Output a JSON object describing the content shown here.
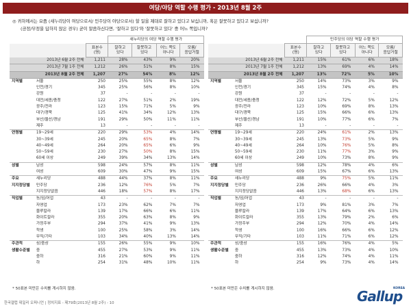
{
  "title": "여당/야당 역할 수행 평가 - 2013년 8월 2주",
  "question_main": "◎  귀하께서는 요즘 (새누리당이 여당으로서/ 민주당이 야당으로서) 할 일을 제대로 잘하고 있다고 보십니까, 혹은 잘못하고 있다고 보십니까?",
  "question_sub": "(긍정/부정을 답하지 않은 경우) 굳이 말씀하신다면, '잘하고 있다'와 '잘못하고 있다' 중 어느 쪽입니까?",
  "left": {
    "header": "새누리당의 여당 역할 수행 평가",
    "cols": [
      "표본수\n(명)",
      "잘하고\n있다",
      "잘못하고\n있다",
      "어느 쪽도\n아니다",
      "모름/\n응답거절"
    ],
    "summary": [
      {
        "label": "2013년 6월 2주 전체",
        "n": "1,211",
        "v": [
          "28%",
          "43%",
          "9%",
          "20%"
        ]
      },
      {
        "label": "2013년 7월 1주 전체",
        "n": "1,212",
        "v": [
          "26%",
          "51%",
          "8%",
          "15%"
        ]
      },
      {
        "label": "2013년 8월 2주 전체",
        "n": "1,207",
        "v": [
          "27%",
          "54%",
          "8%",
          "12%"
        ]
      }
    ],
    "rows": [
      {
        "g": "지역별",
        "s": "서울",
        "n": "250",
        "v": [
          "25%",
          "55%",
          "8%",
          "12%"
        ],
        "hl": [
          false,
          false,
          false,
          false
        ]
      },
      {
        "g": "",
        "s": "인천/경기",
        "n": "345",
        "v": [
          "25%",
          "56%",
          "8%",
          "10%"
        ],
        "hl": [
          false,
          false,
          false,
          false
        ]
      },
      {
        "g": "",
        "s": "강원",
        "n": "37",
        "v": [
          "-",
          "-",
          "-",
          "-"
        ],
        "hl": [
          false,
          false,
          false,
          false
        ]
      },
      {
        "g": "",
        "s": "대전/세종/충청",
        "n": "122",
        "v": [
          "27%",
          "51%",
          "2%",
          "19%"
        ],
        "hl": [
          false,
          false,
          false,
          false
        ]
      },
      {
        "g": "",
        "s": "광주/전라",
        "n": "123",
        "v": [
          "15%",
          "71%",
          "5%",
          "9%"
        ],
        "hl": [
          false,
          false,
          false,
          false
        ]
      },
      {
        "g": "",
        "s": "대구/경북",
        "n": "125",
        "v": [
          "41%",
          "34%",
          "12%",
          "13%"
        ],
        "hl": [
          false,
          false,
          false,
          false
        ]
      },
      {
        "g": "",
        "s": "부산/울산/경남",
        "n": "191",
        "v": [
          "29%",
          "50%",
          "11%",
          "11%"
        ],
        "hl": [
          false,
          false,
          false,
          false
        ]
      },
      {
        "g": "",
        "s": "제주",
        "n": "13",
        "v": [
          "-",
          "-",
          "-",
          "-"
        ],
        "hl": [
          false,
          false,
          false,
          false
        ]
      },
      {
        "g": "연령별",
        "s": "19~29세",
        "n": "220",
        "v": [
          "29%",
          "53%",
          "4%",
          "14%"
        ],
        "hl": [
          false,
          true,
          false,
          false
        ],
        "gs": true
      },
      {
        "g": "",
        "s": "30~39세",
        "n": "245",
        "v": [
          "20%",
          "65%",
          "8%",
          "7%"
        ],
        "hl": [
          false,
          true,
          false,
          false
        ]
      },
      {
        "g": "",
        "s": "40~49세",
        "n": "264",
        "v": [
          "20%",
          "65%",
          "6%",
          "9%"
        ],
        "hl": [
          false,
          true,
          false,
          false
        ]
      },
      {
        "g": "",
        "s": "50~59세",
        "n": "230",
        "v": [
          "27%",
          "50%",
          "8%",
          "15%"
        ],
        "hl": [
          false,
          true,
          false,
          false
        ]
      },
      {
        "g": "",
        "s": "60세 이상",
        "n": "249",
        "v": [
          "39%",
          "34%",
          "13%",
          "14%"
        ],
        "hl": [
          false,
          false,
          false,
          false
        ]
      },
      {
        "g": "성별",
        "s": "남성",
        "n": "598",
        "v": [
          "24%",
          "57%",
          "8%",
          "11%"
        ],
        "hl": [
          false,
          false,
          false,
          false
        ],
        "gs": true
      },
      {
        "g": "",
        "s": "여성",
        "n": "609",
        "v": [
          "30%",
          "47%",
          "9%",
          "15%"
        ],
        "hl": [
          false,
          false,
          false,
          false
        ]
      },
      {
        "g": "주요",
        "s": "새누리당",
        "n": "488",
        "v": [
          "44%",
          "37%",
          "8%",
          "11%"
        ],
        "hl": [
          false,
          false,
          false,
          false
        ],
        "gs": true
      },
      {
        "g": "지지정당별",
        "s": "민주당",
        "n": "236",
        "v": [
          "12%",
          "76%",
          "5%",
          "7%"
        ],
        "hl": [
          false,
          true,
          false,
          false
        ]
      },
      {
        "g": "",
        "s": "지지정당없음",
        "n": "446",
        "v": [
          "18%",
          "57%",
          "8%",
          "17%"
        ],
        "hl": [
          false,
          true,
          false,
          false
        ]
      },
      {
        "g": "직업별",
        "s": "농/임/어업",
        "n": "43",
        "v": [
          "-",
          "-",
          "-",
          "-"
        ],
        "hl": [
          false,
          false,
          false,
          false
        ],
        "gs": true
      },
      {
        "g": "",
        "s": "자영업",
        "n": "173",
        "v": [
          "23%",
          "62%",
          "7%",
          "7%"
        ],
        "hl": [
          false,
          false,
          false,
          false
        ]
      },
      {
        "g": "",
        "s": "블루칼라",
        "n": "139",
        "v": [
          "17%",
          "66%",
          "6%",
          "11%"
        ],
        "hl": [
          false,
          false,
          false,
          false
        ]
      },
      {
        "g": "",
        "s": "화이트칼라",
        "n": "355",
        "v": [
          "20%",
          "63%",
          "8%",
          "9%"
        ],
        "hl": [
          false,
          false,
          false,
          false
        ]
      },
      {
        "g": "",
        "s": "가정주부",
        "n": "294",
        "v": [
          "37%",
          "41%",
          "9%",
          "13%"
        ],
        "hl": [
          false,
          false,
          false,
          false
        ]
      },
      {
        "g": "",
        "s": "학생",
        "n": "100",
        "v": [
          "25%",
          "58%",
          "3%",
          "14%"
        ],
        "hl": [
          false,
          false,
          false,
          false
        ]
      },
      {
        "g": "",
        "s": "무직/기타",
        "n": "103",
        "v": [
          "34%",
          "40%",
          "13%",
          "14%"
        ],
        "hl": [
          false,
          false,
          false,
          false
        ]
      },
      {
        "g": "주관적",
        "s": "상/중상",
        "n": "155",
        "v": [
          "26%",
          "55%",
          "9%",
          "10%"
        ],
        "hl": [
          false,
          false,
          false,
          false
        ],
        "gs": true
      },
      {
        "g": "생활수준별",
        "s": "중",
        "n": "455",
        "v": [
          "27%",
          "53%",
          "9%",
          "11%"
        ],
        "hl": [
          false,
          false,
          false,
          false
        ]
      },
      {
        "g": "",
        "s": "중하",
        "n": "316",
        "v": [
          "21%",
          "60%",
          "9%",
          "11%"
        ],
        "hl": [
          false,
          false,
          false,
          false
        ]
      },
      {
        "g": "",
        "s": "하",
        "n": "254",
        "v": [
          "31%",
          "48%",
          "10%",
          "11%"
        ],
        "hl": [
          false,
          false,
          false,
          false
        ]
      }
    ]
  },
  "right": {
    "header": "민주당의 야당 역할 수행 평가",
    "cols": [
      "표본수\n(명)",
      "잘하고\n있다",
      "잘못하고\n있다",
      "어느 쪽도\n아니다",
      "모름/\n응답거절"
    ],
    "summary": [
      {
        "label": "2013년 6월 2주 전체",
        "n": "1,211",
        "v": [
          "15%",
          "61%",
          "6%",
          "18%"
        ]
      },
      {
        "label": "2013년 7월 1주 전체",
        "n": "1,212",
        "v": [
          "13%",
          "69%",
          "4%",
          "14%"
        ]
      },
      {
        "label": "2013년 8월 2주 전체",
        "n": "1,207",
        "v": [
          "13%",
          "72%",
          "5%",
          "10%"
        ]
      }
    ],
    "rows": [
      {
        "g": "지역별",
        "s": "서울",
        "n": "250",
        "v": [
          "14%",
          "73%",
          "3%",
          "9%"
        ],
        "hl": [
          false,
          false,
          false,
          false
        ]
      },
      {
        "g": "",
        "s": "인천/경기",
        "n": "345",
        "v": [
          "15%",
          "74%",
          "4%",
          "8%"
        ],
        "hl": [
          false,
          false,
          false,
          false
        ]
      },
      {
        "g": "",
        "s": "강원",
        "n": "37",
        "v": [
          "-",
          "-",
          "-",
          "-"
        ],
        "hl": [
          false,
          false,
          false,
          false
        ]
      },
      {
        "g": "",
        "s": "대전/세종/충청",
        "n": "122",
        "v": [
          "12%",
          "72%",
          "5%",
          "12%"
        ],
        "hl": [
          false,
          false,
          false,
          false
        ]
      },
      {
        "g": "",
        "s": "광주/전라",
        "n": "123",
        "v": [
          "10%",
          "69%",
          "8%",
          "13%"
        ],
        "hl": [
          false,
          false,
          false,
          false
        ]
      },
      {
        "g": "",
        "s": "대구/경북",
        "n": "125",
        "v": [
          "15%",
          "66%",
          "6%",
          "13%"
        ],
        "hl": [
          false,
          false,
          false,
          false
        ]
      },
      {
        "g": "",
        "s": "부산/울산/경남",
        "n": "191",
        "v": [
          "10%",
          "77%",
          "6%",
          "7%"
        ],
        "hl": [
          false,
          false,
          false,
          false
        ]
      },
      {
        "g": "",
        "s": "제주",
        "n": "13",
        "v": [
          "-",
          "-",
          "-",
          "-"
        ],
        "hl": [
          false,
          false,
          false,
          false
        ]
      },
      {
        "g": "연령별",
        "s": "19~29세",
        "n": "220",
        "v": [
          "24%",
          "61%",
          "2%",
          "13%"
        ],
        "hl": [
          false,
          true,
          false,
          false
        ],
        "gs": true
      },
      {
        "g": "",
        "s": "30~39세",
        "n": "245",
        "v": [
          "13%",
          "73%",
          "5%",
          "9%"
        ],
        "hl": [
          false,
          true,
          false,
          false
        ]
      },
      {
        "g": "",
        "s": "40~49세",
        "n": "264",
        "v": [
          "10%",
          "76%",
          "5%",
          "8%"
        ],
        "hl": [
          false,
          true,
          false,
          false
        ]
      },
      {
        "g": "",
        "s": "50~59세",
        "n": "230",
        "v": [
          "11%",
          "77%",
          "3%",
          "9%"
        ],
        "hl": [
          false,
          true,
          false,
          false
        ]
      },
      {
        "g": "",
        "s": "60세 이상",
        "n": "249",
        "v": [
          "10%",
          "73%",
          "8%",
          "9%"
        ],
        "hl": [
          false,
          false,
          false,
          false
        ]
      },
      {
        "g": "성별",
        "s": "남성",
        "n": "598",
        "v": [
          "12%",
          "78%",
          "4%",
          "6%"
        ],
        "hl": [
          false,
          false,
          false,
          false
        ],
        "gs": true
      },
      {
        "g": "",
        "s": "여성",
        "n": "609",
        "v": [
          "15%",
          "67%",
          "6%",
          "13%"
        ],
        "hl": [
          false,
          false,
          false,
          false
        ]
      },
      {
        "g": "주요",
        "s": "새누리당",
        "n": "488",
        "v": [
          "9%",
          "75%",
          "5%",
          "11%"
        ],
        "hl": [
          false,
          true,
          false,
          false
        ],
        "gs": true
      },
      {
        "g": "지지정당별",
        "s": "민주당",
        "n": "236",
        "v": [
          "26%",
          "66%",
          "4%",
          "3%"
        ],
        "hl": [
          false,
          false,
          false,
          false
        ]
      },
      {
        "g": "",
        "s": "지지정당없음",
        "n": "446",
        "v": [
          "13%",
          "68%",
          "6%",
          "13%"
        ],
        "hl": [
          false,
          true,
          false,
          false
        ]
      },
      {
        "g": "직업별",
        "s": "농/임/어업",
        "n": "43",
        "v": [
          "-",
          "-",
          "-",
          "-"
        ],
        "hl": [
          false,
          false,
          false,
          false
        ],
        "gs": true
      },
      {
        "g": "",
        "s": "자영업",
        "n": "173",
        "v": [
          "9%",
          "81%",
          "3%",
          "7%"
        ],
        "hl": [
          false,
          false,
          false,
          false
        ]
      },
      {
        "g": "",
        "s": "블루칼라",
        "n": "139",
        "v": [
          "17%",
          "64%",
          "6%",
          "13%"
        ],
        "hl": [
          false,
          false,
          false,
          false
        ]
      },
      {
        "g": "",
        "s": "화이트칼라",
        "n": "355",
        "v": [
          "13%",
          "79%",
          "2%",
          "6%"
        ],
        "hl": [
          false,
          false,
          false,
          false
        ]
      },
      {
        "g": "",
        "s": "가정주부",
        "n": "294",
        "v": [
          "12%",
          "70%",
          "4%",
          "14%"
        ],
        "hl": [
          false,
          false,
          false,
          false
        ]
      },
      {
        "g": "",
        "s": "학생",
        "n": "100",
        "v": [
          "16%",
          "66%",
          "6%",
          "12%"
        ],
        "hl": [
          false,
          false,
          false,
          false
        ]
      },
      {
        "g": "",
        "s": "무직/기타",
        "n": "103",
        "v": [
          "11%",
          "71%",
          "6%",
          "12%"
        ],
        "hl": [
          false,
          false,
          false,
          false
        ]
      },
      {
        "g": "주관적",
        "s": "상/중상",
        "n": "155",
        "v": [
          "16%",
          "76%",
          "4%",
          "5%"
        ],
        "hl": [
          false,
          false,
          false,
          false
        ],
        "gs": true
      },
      {
        "g": "생활수준별",
        "s": "중",
        "n": "455",
        "v": [
          "13%",
          "73%",
          "4%",
          "10%"
        ],
        "hl": [
          false,
          false,
          false,
          false
        ]
      },
      {
        "g": "",
        "s": "중하",
        "n": "316",
        "v": [
          "12%",
          "74%",
          "4%",
          "11%"
        ],
        "hl": [
          false,
          false,
          false,
          false
        ]
      },
      {
        "g": "",
        "s": "하",
        "n": "254",
        "v": [
          "9%",
          "73%",
          "4%",
          "14%"
        ],
        "hl": [
          false,
          false,
          false,
          false
        ]
      }
    ]
  },
  "note": "* 50표본 미만은 수치를 게시하지 않음.",
  "footer": "한국갤럽 데일리 오피니언 | 정치지표 - 제79호(2013년 8월 2주) - 10",
  "logo_text": "Gallup",
  "logo_sub": "KOREA",
  "colors": {
    "title_bg": "#8f1d1d",
    "highlight": "#c0392b",
    "logo": "#1f4e8c"
  }
}
